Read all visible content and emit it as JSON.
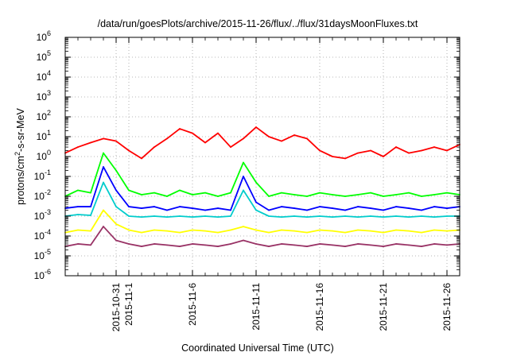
{
  "chart_data": {
    "type": "line",
    "title": "/data/run/goesPlots/archive/2015-11-26/flux/../flux/31daysMoonFluxes.txt",
    "xlabel": "Coordinated Universal Time (UTC)",
    "ylabel": {
      "base": "protons/cm",
      "sup": "2",
      "rest": "-s-sr-MeV"
    },
    "yscale": "log",
    "ylim": [
      1e-06,
      1000000.0
    ],
    "yticks": [
      {
        "base": "10",
        "exp": "-6",
        "value": 1e-06
      },
      {
        "base": "10",
        "exp": "-5",
        "value": 1e-05
      },
      {
        "base": "10",
        "exp": "-4",
        "value": 0.0001
      },
      {
        "base": "10",
        "exp": "-3",
        "value": 0.001
      },
      {
        "base": "10",
        "exp": "-2",
        "value": 0.01
      },
      {
        "base": "10",
        "exp": "-1",
        "value": 0.1
      },
      {
        "base": "10",
        "exp": "0",
        "value": 1
      },
      {
        "base": "10",
        "exp": "1",
        "value": 10
      },
      {
        "base": "10",
        "exp": "2",
        "value": 100
      },
      {
        "base": "10",
        "exp": "3",
        "value": 1000
      },
      {
        "base": "10",
        "exp": "4",
        "value": 10000
      },
      {
        "base": "10",
        "exp": "5",
        "value": 100000
      },
      {
        "base": "10",
        "exp": "6",
        "value": 1000000
      }
    ],
    "xlim": [
      "2015-10-27",
      "2015-11-27"
    ],
    "xticks": [
      "2015-10-31",
      "2015-11-1",
      "2015-11-6",
      "2015-11-11",
      "2015-11-16",
      "2015-11-21",
      "2015-11-26"
    ],
    "grid": true,
    "legend": "none",
    "series": [
      {
        "color": "#ff0000",
        "x": [
          "2015-10-27",
          "2015-10-28",
          "2015-10-29",
          "2015-10-30",
          "2015-10-31",
          "2015-11-1",
          "2015-11-2",
          "2015-11-3",
          "2015-11-4",
          "2015-11-5",
          "2015-11-6",
          "2015-11-7",
          "2015-11-8",
          "2015-11-9",
          "2015-11-10",
          "2015-11-11",
          "2015-11-12",
          "2015-11-13",
          "2015-11-14",
          "2015-11-15",
          "2015-11-16",
          "2015-11-17",
          "2015-11-18",
          "2015-11-19",
          "2015-11-20",
          "2015-11-21",
          "2015-11-22",
          "2015-11-23",
          "2015-11-24",
          "2015-11-25",
          "2015-11-26",
          "2015-11-27"
        ],
        "y": [
          1.5,
          3,
          5,
          8,
          6,
          2,
          0.8,
          3,
          8,
          25,
          15,
          5,
          15,
          3,
          8,
          30,
          10,
          6,
          12,
          8,
          2,
          1,
          0.8,
          1.5,
          2,
          1,
          3,
          1.5,
          2,
          3,
          2,
          4
        ]
      },
      {
        "color": "#00ff00",
        "x": [
          "2015-10-27",
          "2015-10-28",
          "2015-10-29",
          "2015-10-30",
          "2015-10-31",
          "2015-11-1",
          "2015-11-2",
          "2015-11-3",
          "2015-11-4",
          "2015-11-5",
          "2015-11-6",
          "2015-11-7",
          "2015-11-8",
          "2015-11-9",
          "2015-11-10",
          "2015-11-11",
          "2015-11-12",
          "2015-11-13",
          "2015-11-14",
          "2015-11-15",
          "2015-11-16",
          "2015-11-17",
          "2015-11-18",
          "2015-11-19",
          "2015-11-20",
          "2015-11-21",
          "2015-11-22",
          "2015-11-23",
          "2015-11-24",
          "2015-11-25",
          "2015-11-26",
          "2015-11-27"
        ],
        "y": [
          0.01,
          0.02,
          0.015,
          1.5,
          0.2,
          0.02,
          0.012,
          0.015,
          0.01,
          0.02,
          0.012,
          0.015,
          0.01,
          0.015,
          0.5,
          0.05,
          0.01,
          0.015,
          0.012,
          0.01,
          0.015,
          0.012,
          0.01,
          0.012,
          0.015,
          0.01,
          0.012,
          0.015,
          0.01,
          0.012,
          0.015,
          0.012
        ]
      },
      {
        "color": "#0000ff",
        "x": [
          "2015-10-27",
          "2015-10-28",
          "2015-10-29",
          "2015-10-30",
          "2015-10-31",
          "2015-11-1",
          "2015-11-2",
          "2015-11-3",
          "2015-11-4",
          "2015-11-5",
          "2015-11-6",
          "2015-11-7",
          "2015-11-8",
          "2015-11-9",
          "2015-11-10",
          "2015-11-11",
          "2015-11-12",
          "2015-11-13",
          "2015-11-14",
          "2015-11-15",
          "2015-11-16",
          "2015-11-17",
          "2015-11-18",
          "2015-11-19",
          "2015-11-20",
          "2015-11-21",
          "2015-11-22",
          "2015-11-23",
          "2015-11-24",
          "2015-11-25",
          "2015-11-26",
          "2015-11-27"
        ],
        "y": [
          0.0025,
          0.003,
          0.003,
          0.3,
          0.02,
          0.003,
          0.0025,
          0.003,
          0.002,
          0.003,
          0.0025,
          0.002,
          0.0025,
          0.002,
          0.1,
          0.005,
          0.002,
          0.003,
          0.0025,
          0.002,
          0.003,
          0.0025,
          0.002,
          0.003,
          0.0025,
          0.002,
          0.003,
          0.0025,
          0.002,
          0.003,
          0.0025,
          0.003
        ]
      },
      {
        "color": "#00cccc",
        "x": [
          "2015-10-27",
          "2015-10-28",
          "2015-10-29",
          "2015-10-30",
          "2015-10-31",
          "2015-11-1",
          "2015-11-2",
          "2015-11-3",
          "2015-11-4",
          "2015-11-5",
          "2015-11-6",
          "2015-11-7",
          "2015-11-8",
          "2015-11-9",
          "2015-11-10",
          "2015-11-11",
          "2015-11-12",
          "2015-11-13",
          "2015-11-14",
          "2015-11-15",
          "2015-11-16",
          "2015-11-17",
          "2015-11-18",
          "2015-11-19",
          "2015-11-20",
          "2015-11-21",
          "2015-11-22",
          "2015-11-23",
          "2015-11-24",
          "2015-11-25",
          "2015-11-26",
          "2015-11-27"
        ],
        "y": [
          0.001,
          0.0012,
          0.0011,
          0.05,
          0.003,
          0.001,
          0.0009,
          0.001,
          0.0009,
          0.001,
          0.0009,
          0.001,
          0.0009,
          0.001,
          0.02,
          0.002,
          0.001,
          0.0009,
          0.001,
          0.0009,
          0.001,
          0.0009,
          0.001,
          0.0009,
          0.001,
          0.0009,
          0.001,
          0.0009,
          0.001,
          0.0009,
          0.001,
          0.001
        ]
      },
      {
        "color": "#ffff00",
        "x": [
          "2015-10-27",
          "2015-10-28",
          "2015-10-29",
          "2015-10-30",
          "2015-10-31",
          "2015-11-1",
          "2015-11-2",
          "2015-11-3",
          "2015-11-4",
          "2015-11-5",
          "2015-11-6",
          "2015-11-7",
          "2015-11-8",
          "2015-11-9",
          "2015-11-10",
          "2015-11-11",
          "2015-11-12",
          "2015-11-13",
          "2015-11-14",
          "2015-11-15",
          "2015-11-16",
          "2015-11-17",
          "2015-11-18",
          "2015-11-19",
          "2015-11-20",
          "2015-11-21",
          "2015-11-22",
          "2015-11-23",
          "2015-11-24",
          "2015-11-25",
          "2015-11-26",
          "2015-11-27"
        ],
        "y": [
          0.00015,
          0.0002,
          0.00018,
          0.002,
          0.0004,
          0.0002,
          0.00015,
          0.0002,
          0.00018,
          0.00015,
          0.0002,
          0.00018,
          0.00015,
          0.0002,
          0.0003,
          0.0002,
          0.00015,
          0.0002,
          0.00018,
          0.00015,
          0.0002,
          0.00018,
          0.00015,
          0.0002,
          0.00018,
          0.00015,
          0.0002,
          0.00018,
          0.00015,
          0.0002,
          0.00018,
          0.0002
        ]
      },
      {
        "color": "#993366",
        "x": [
          "2015-10-27",
          "2015-10-28",
          "2015-10-29",
          "2015-10-30",
          "2015-10-31",
          "2015-11-1",
          "2015-11-2",
          "2015-11-3",
          "2015-11-4",
          "2015-11-5",
          "2015-11-6",
          "2015-11-7",
          "2015-11-8",
          "2015-11-9",
          "2015-11-10",
          "2015-11-11",
          "2015-11-12",
          "2015-11-13",
          "2015-11-14",
          "2015-11-15",
          "2015-11-16",
          "2015-11-17",
          "2015-11-18",
          "2015-11-19",
          "2015-11-20",
          "2015-11-21",
          "2015-11-22",
          "2015-11-23",
          "2015-11-24",
          "2015-11-25",
          "2015-11-26",
          "2015-11-27"
        ],
        "y": [
          3e-05,
          4e-05,
          3.5e-05,
          0.0003,
          6e-05,
          4e-05,
          3e-05,
          4e-05,
          3.5e-05,
          3e-05,
          4e-05,
          3.5e-05,
          3e-05,
          4e-05,
          6e-05,
          4e-05,
          3e-05,
          4e-05,
          3.5e-05,
          3e-05,
          4e-05,
          3.5e-05,
          3e-05,
          4e-05,
          3.5e-05,
          3e-05,
          4e-05,
          3.5e-05,
          3e-05,
          4e-05,
          3.5e-05,
          4e-05
        ]
      }
    ]
  }
}
